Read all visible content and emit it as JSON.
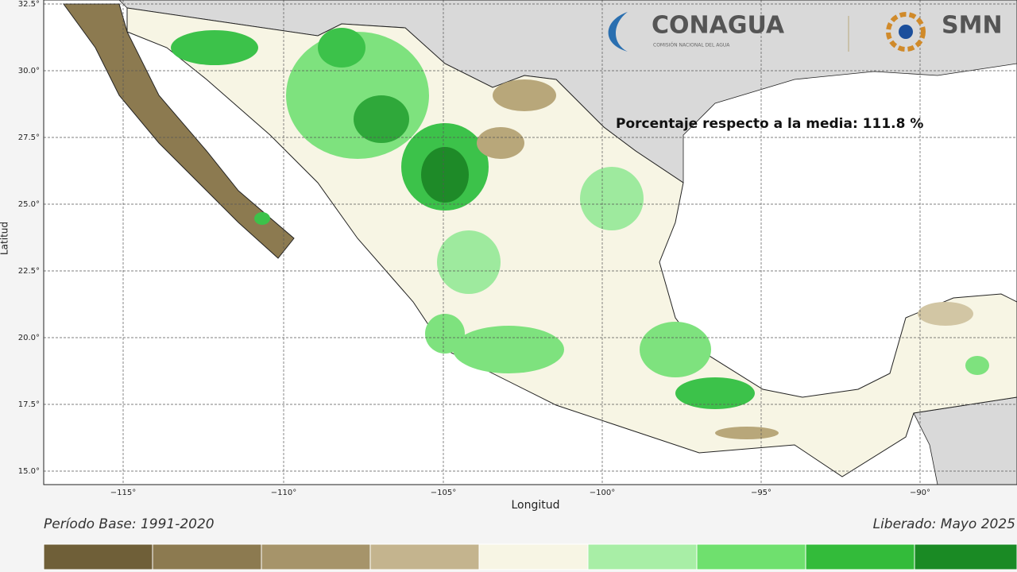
{
  "header": {
    "logo_left": "CONAGUA",
    "logo_left_sub": "COMISIÓN NACIONAL DEL AGUA",
    "logo_right": "SMN"
  },
  "map": {
    "annotation": "Porcentaje respecto a la media: 111.8 %",
    "x_axis": {
      "label": "Longitud",
      "ticks": [
        "−115°",
        "−110°",
        "−105°",
        "−100°",
        "−95°",
        "−90°"
      ]
    },
    "y_axis": {
      "label": "Latitud",
      "ticks": [
        "32.5°",
        "30.0°",
        "27.5°",
        "25.0°",
        "22.5°",
        "20.0°",
        "17.5°",
        "15.0°"
      ]
    }
  },
  "footer": {
    "base_period": "Período Base: 1991-2020",
    "released": "Liberado: Mayo 2025"
  }
}
